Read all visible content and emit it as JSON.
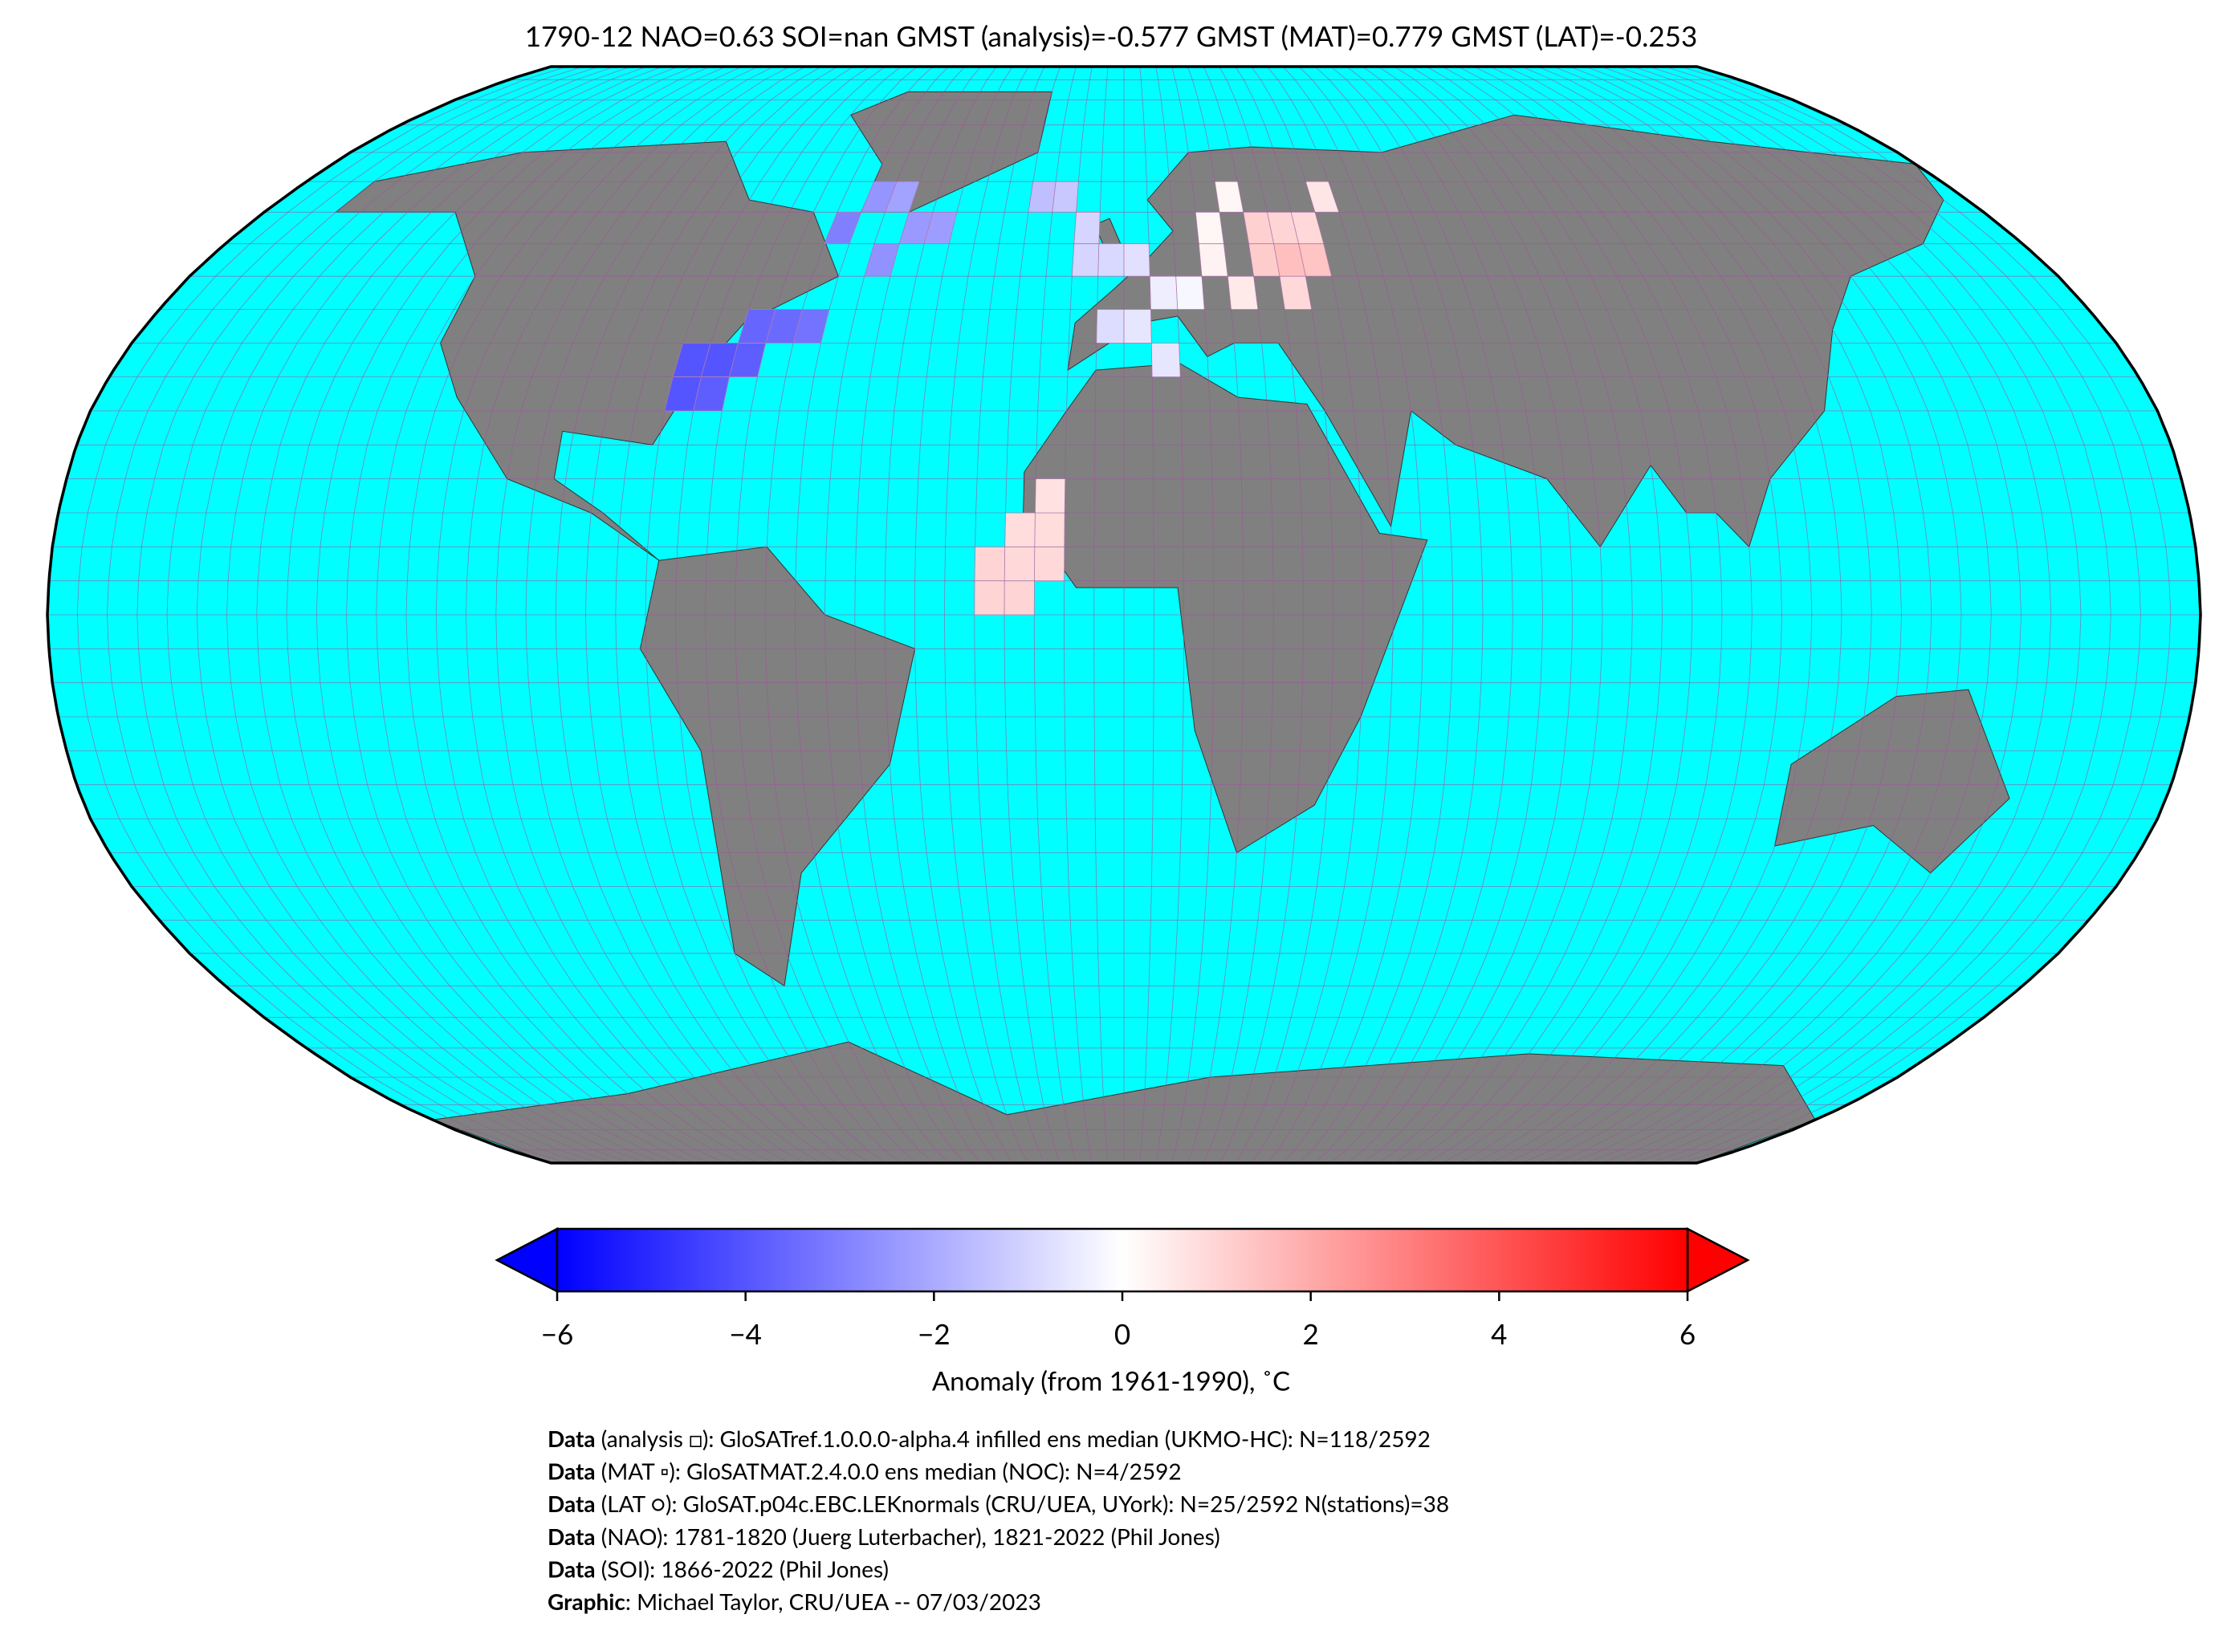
{
  "chart_data": {
    "type": "map",
    "title": "1790-12 NAO=0.63 SOI=nan GMST (analysis)=-0.577 GMST (MAT)=0.779 GMST (LAT)=-0.253",
    "colorbar": {
      "label": "Anomaly (from 1961-1990), ˚C",
      "ticks": [
        {
          "value": -6,
          "label": "−6"
        },
        {
          "value": -4,
          "label": "−4"
        },
        {
          "value": -2,
          "label": "−2"
        },
        0,
        2,
        4,
        6
      ],
      "low_color": "#0000ff",
      "mid_color": "#ffffff",
      "high_color": "#ff0000"
    },
    "ocean_color": "#00ffff",
    "land_color": "#808080",
    "grid_color": "#a0529e",
    "cells": [
      {
        "lon": -80,
        "lat": 35,
        "value": -4
      },
      {
        "lon": -75,
        "lat": 35,
        "value": -4
      },
      {
        "lon": -70,
        "lat": 35,
        "value": -3.8
      },
      {
        "lon": -75,
        "lat": 30,
        "value": -3.8
      },
      {
        "lon": -80,
        "lat": 30,
        "value": -4
      },
      {
        "lon": -65,
        "lat": 40,
        "value": -3.5
      },
      {
        "lon": -60,
        "lat": 40,
        "value": -3.3
      },
      {
        "lon": -70,
        "lat": 40,
        "value": -3.6
      },
      {
        "lon": -60,
        "lat": 55,
        "value": -3
      },
      {
        "lon": -55,
        "lat": 60,
        "value": -2.5
      },
      {
        "lon": -50,
        "lat": 60,
        "value": -2.2
      },
      {
        "lon": -45,
        "lat": 55,
        "value": -2.4
      },
      {
        "lon": -40,
        "lat": 55,
        "value": -2.3
      },
      {
        "lon": -50,
        "lat": 50,
        "value": -2.6
      },
      {
        "lon": -20,
        "lat": 60,
        "value": -1.5
      },
      {
        "lon": -15,
        "lat": 60,
        "value": -1.3
      },
      {
        "lon": -10,
        "lat": 55,
        "value": -1
      },
      {
        "lon": -10,
        "lat": 50,
        "value": -1
      },
      {
        "lon": -5,
        "lat": 50,
        "value": -0.9
      },
      {
        "lon": 0,
        "lat": 50,
        "value": -0.7
      },
      {
        "lon": -5,
        "lat": 40,
        "value": -0.8
      },
      {
        "lon": 0,
        "lat": 40,
        "value": -0.6
      },
      {
        "lon": 5,
        "lat": 45,
        "value": -0.4
      },
      {
        "lon": 10,
        "lat": 45,
        "value": -0.2
      },
      {
        "lon": 5,
        "lat": 35,
        "value": -0.6
      },
      {
        "lon": 15,
        "lat": 55,
        "value": 0.2
      },
      {
        "lon": 15,
        "lat": 50,
        "value": 0.3
      },
      {
        "lon": 20,
        "lat": 45,
        "value": 0.5
      },
      {
        "lon": 20,
        "lat": 60,
        "value": 0.2
      },
      {
        "lon": 25,
        "lat": 50,
        "value": 1.2
      },
      {
        "lon": 30,
        "lat": 50,
        "value": 1.5
      },
      {
        "lon": 35,
        "lat": 50,
        "value": 1.4
      },
      {
        "lon": 25,
        "lat": 55,
        "value": 1.1
      },
      {
        "lon": 30,
        "lat": 55,
        "value": 1
      },
      {
        "lon": 35,
        "lat": 55,
        "value": 0.9
      },
      {
        "lon": 40,
        "lat": 60,
        "value": 0.6
      },
      {
        "lon": 30,
        "lat": 45,
        "value": 0.9
      },
      {
        "lon": -20,
        "lat": 10,
        "value": 0.8
      },
      {
        "lon": -15,
        "lat": 10,
        "value": 0.8
      },
      {
        "lon": -20,
        "lat": 5,
        "value": 0.9
      },
      {
        "lon": -15,
        "lat": 5,
        "value": 0.9
      },
      {
        "lon": -25,
        "lat": 5,
        "value": 1
      },
      {
        "lon": -25,
        "lat": 0,
        "value": 1
      },
      {
        "lon": -20,
        "lat": 0,
        "value": 1
      },
      {
        "lon": -15,
        "lat": 15,
        "value": 0.7
      }
    ]
  },
  "credits": [
    {
      "label": "Data",
      "text": " (analysis □): GloSATref.1.0.0.0-alpha.4 infilled ens median (UKMO-HC): N=118/2592"
    },
    {
      "label": "Data",
      "text": " (MAT ▫): GloSATMAT.2.4.0.0 ens median (NOC): N=4/2592"
    },
    {
      "label": "Data",
      "text": " (LAT ○): GloSAT.p04c.EBC.LEKnormals (CRU/UEA, UYork): N=25/2592 N(stations)=38"
    },
    {
      "label": "Data",
      "text": " (NAO): 1781-1820 (Juerg Luterbacher), 1821-2022 (Phil Jones)"
    },
    {
      "label": "Data",
      "text": " (SOI): 1866-2022 (Phil Jones)"
    },
    {
      "label": "Graphic",
      "text": ": Michael Taylor, CRU/UEA -- 07/03/2023"
    }
  ]
}
